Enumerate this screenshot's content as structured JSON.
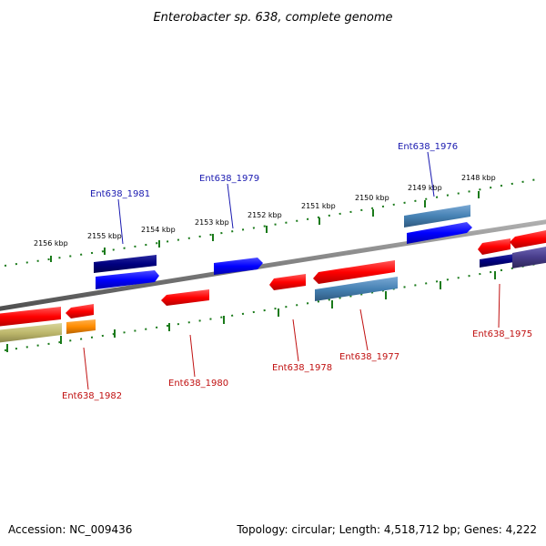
{
  "title": "Enterobacter sp. 638, complete genome",
  "footer": {
    "accession": "Accession: NC_009436",
    "summary": "Topology: circular; Length: 4,518,712 bp; Genes: 4,222"
  },
  "scale_ticks": [
    "2156 kbp",
    "2155 kbp",
    "2154 kbp",
    "2153 kbp",
    "2152 kbp",
    "2151 kbp",
    "2150 kbp",
    "2149 kbp",
    "2148 kbp"
  ],
  "gene_labels": {
    "top": [
      "Ent638_1981",
      "Ent638_1979",
      "Ent638_1976"
    ],
    "bottom": [
      "Ent638_1982",
      "Ent638_1980",
      "Ent638_1978",
      "Ent638_1977",
      "Ent638_1975"
    ]
  },
  "colors": {
    "forward_gene": "#0000ff",
    "reverse_gene": "#ff0000",
    "steelblue_gene": "#4682b4",
    "navy_gene": "#000080",
    "olive_gene": "#bdb76b",
    "orange_gene": "#ff8c00",
    "slate_gene": "#483d8b",
    "backbone": "#888888",
    "ticks": "#1a7a1a"
  }
}
